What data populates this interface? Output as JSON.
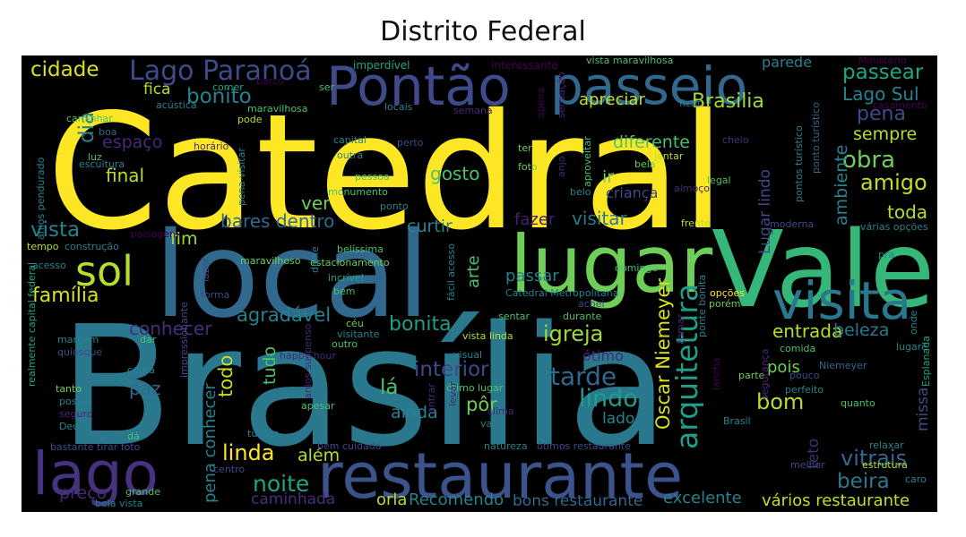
{
  "title": "Distrito Federal",
  "words": [
    {
      "text": "Catedral",
      "color": "#fde725"
    },
    {
      "text": "Brasília",
      "color": "#2a788e"
    },
    {
      "text": "local",
      "color": "#31688e"
    },
    {
      "text": "Vale",
      "color": "#35b779"
    },
    {
      "text": "lugar",
      "color": "#6ece58"
    },
    {
      "text": "restaurante",
      "color": "#3b528b"
    },
    {
      "text": "Pontão",
      "color": "#3e4a89"
    },
    {
      "text": "passeio",
      "color": "#31688e"
    },
    {
      "text": "lago",
      "color": "#46327e"
    },
    {
      "text": "visita",
      "color": "#2a788e"
    },
    {
      "text": "sol",
      "color": "#b5de2b"
    },
    {
      "text": "Lago Paranoá",
      "color": "#3e4a89"
    },
    {
      "text": "arquitetura",
      "color": "#1f9e89"
    },
    {
      "text": "cidade",
      "color": "#d8e219"
    },
    {
      "text": "Brasilia",
      "color": "#a0da39"
    },
    {
      "text": "bonito",
      "color": "#26828e"
    },
    {
      "text": "passear",
      "color": "#20a486"
    },
    {
      "text": "Lago Sul",
      "color": "#26828e"
    },
    {
      "text": "pena",
      "color": "#3e4a89"
    },
    {
      "text": "sempre",
      "color": "#b5de2b"
    },
    {
      "text": "obra",
      "color": "#6ece58"
    },
    {
      "text": "amigo",
      "color": "#c2df23"
    },
    {
      "text": "vista",
      "color": "#26828e"
    },
    {
      "text": "família",
      "color": "#d8e219"
    },
    {
      "text": "conhecer",
      "color": "#472d7b"
    },
    {
      "text": "agradável",
      "color": "#26828e"
    },
    {
      "text": "bonita",
      "color": "#1f9e89"
    },
    {
      "text": "igreja",
      "color": "#a0da39"
    },
    {
      "text": "entrada",
      "color": "#b5de2b"
    },
    {
      "text": "beleza",
      "color": "#2a788e"
    },
    {
      "text": "Oscar Niemeyer",
      "color": "#d8e219"
    },
    {
      "text": "lindo",
      "color": "#1f9e89"
    },
    {
      "text": "tarde",
      "color": "#31688e"
    },
    {
      "text": "interior",
      "color": "#3e4a89"
    },
    {
      "text": "lá",
      "color": "#4ac16d"
    },
    {
      "text": "pôr",
      "color": "#6ece58"
    },
    {
      "text": "ainda",
      "color": "#26828e"
    },
    {
      "text": "noite",
      "color": "#20a486"
    },
    {
      "text": "linda",
      "color": "#fde725"
    },
    {
      "text": "além",
      "color": "#b5de2b"
    },
    {
      "text": "bom",
      "color": "#b5de2b"
    },
    {
      "text": "missa",
      "color": "#3e4a89"
    },
    {
      "text": "vitrais",
      "color": "#31688e"
    },
    {
      "text": "beira",
      "color": "#2a788e"
    },
    {
      "text": "excelente",
      "color": "#26828e"
    },
    {
      "text": "vários restaurante",
      "color": "#c2df23"
    },
    {
      "text": "orla",
      "color": "#b5de2b"
    },
    {
      "text": "Recomendo",
      "color": "#26828e"
    },
    {
      "text": "bons restaurante",
      "color": "#31688e"
    },
    {
      "text": "caminhada",
      "color": "#472d7b"
    },
    {
      "text": "preço",
      "color": "#482878"
    },
    {
      "text": "bares dentro",
      "color": "#31688e"
    },
    {
      "text": "fazer",
      "color": "#481f70"
    },
    {
      "text": "visitar",
      "color": "#2a788e"
    },
    {
      "text": "curtir",
      "color": "#26828e"
    },
    {
      "text": "fim",
      "color": "#a0da39"
    },
    {
      "text": "ver",
      "color": "#6ece58"
    },
    {
      "text": "gosto",
      "color": "#4ac16d"
    },
    {
      "text": "final",
      "color": "#b5de2b"
    },
    {
      "text": "fica",
      "color": "#b5de2b"
    },
    {
      "text": "dia",
      "color": "#26828e"
    },
    {
      "text": "espaço",
      "color": "#482878"
    },
    {
      "text": "diferente",
      "color": "#4ac16d"
    },
    {
      "text": "apreciar",
      "color": "#c2df23"
    },
    {
      "text": "ir",
      "color": "#6ece58"
    },
    {
      "text": "criança",
      "color": "#3e4a89"
    },
    {
      "text": "ambiente",
      "color": "#26828e"
    },
    {
      "text": "Lugar lindo",
      "color": "#3e4a89"
    },
    {
      "text": "toda",
      "color": "#b5de2b"
    },
    {
      "text": "arte",
      "color": "#4ac16d"
    },
    {
      "text": "passar",
      "color": "#26828e"
    },
    {
      "text": "todo",
      "color": "#c2df23"
    },
    {
      "text": "tudo",
      "color": "#4ac16d"
    },
    {
      "text": "paz",
      "color": "#31688e"
    },
    {
      "text": "pena conhecer",
      "color": "#26828e"
    },
    {
      "text": "parede",
      "color": "#26828e"
    },
    {
      "text": "pois",
      "color": "#6ece58"
    },
    {
      "text": "lado",
      "color": "#26828e"
    },
    {
      "text": "teto",
      "color": "#472d7b"
    },
    {
      "text": "ótimo",
      "color": "#482878"
    },
    {
      "text": "imperdível",
      "color": "#20a486"
    },
    {
      "text": "interessante",
      "color": "#440154"
    },
    {
      "text": "vista maravilhosa",
      "color": "#4ac16d"
    },
    {
      "text": "Ministério",
      "color": "#440154"
    },
    {
      "text": "casamento",
      "color": "#440154"
    },
    {
      "text": "comer",
      "color": "#20a486"
    },
    {
      "text": "barco",
      "color": "#440154"
    },
    {
      "text": "ser",
      "color": "#4ac16d"
    },
    {
      "text": "acústica",
      "color": "#26828e"
    },
    {
      "text": "maravilhosa",
      "color": "#4ac16d"
    },
    {
      "text": "locais",
      "color": "#26828e"
    },
    {
      "text": "semana",
      "color": "#482878"
    },
    {
      "text": "ficar",
      "color": "#2a788e"
    },
    {
      "text": "caminhar",
      "color": "#4ac16d"
    },
    {
      "text": "pode",
      "color": "#b5de2b"
    },
    {
      "text": "boa",
      "color": "#31688e"
    },
    {
      "text": "horário",
      "color": "#482878"
    },
    {
      "text": "luz",
      "color": "#4ac16d"
    },
    {
      "text": "escultura",
      "color": "#26828e"
    },
    {
      "text": "anjos pendurado",
      "color": "#26828e"
    },
    {
      "text": "capital",
      "color": "#26828e"
    },
    {
      "text": "perto",
      "color": "#3e4a89"
    },
    {
      "text": "outra",
      "color": "#26828e"
    },
    {
      "text": "pessoa",
      "color": "#4ac16d"
    },
    {
      "text": "monumento",
      "color": "#4ac16d"
    },
    {
      "text": "ponto",
      "color": "#26828e"
    },
    {
      "text": "pena visitar",
      "color": "#26828e"
    },
    {
      "text": "ter",
      "color": "#6ece58"
    },
    {
      "text": "foto",
      "color": "#6ece58"
    },
    {
      "text": "anjo",
      "color": "#482878"
    },
    {
      "text": "aproveitar",
      "color": "#4ac16d"
    },
    {
      "text": "jantar",
      "color": "#b5de2b"
    },
    {
      "text": "bela",
      "color": "#6ece58"
    },
    {
      "text": "belo",
      "color": "#26828e"
    },
    {
      "text": "almoço",
      "color": "#482878"
    },
    {
      "text": "legal",
      "color": "#4ac16d"
    },
    {
      "text": "pontos turístico",
      "color": "#26828e"
    },
    {
      "text": "ponto turístico",
      "color": "#31688e"
    },
    {
      "text": "cheio",
      "color": "#472d7b"
    },
    {
      "text": "sensação",
      "color": "#482878"
    },
    {
      "text": "apena",
      "color": "#440154"
    },
    {
      "text": "moderna",
      "color": "#3e4a89"
    },
    {
      "text": "várias opções",
      "color": "#26828e"
    },
    {
      "text": "frente",
      "color": "#b5de2b"
    },
    {
      "text": "tempo",
      "color": "#b5de2b"
    },
    {
      "text": "construção",
      "color": "#26828e"
    },
    {
      "text": "paisagem",
      "color": "#440154"
    },
    {
      "text": "maravilhoso",
      "color": "#6ece58"
    },
    {
      "text": "belíssima",
      "color": "#4ac16d"
    },
    {
      "text": "acesso",
      "color": "#26828e"
    },
    {
      "text": "lazer",
      "color": "#3e4a89"
    },
    {
      "text": "estacionamento",
      "color": "#6ece58"
    },
    {
      "text": "deixe",
      "color": "#26828e"
    },
    {
      "text": "incrível",
      "color": "#20a486"
    },
    {
      "text": "bem",
      "color": "#4ac16d"
    },
    {
      "text": "fácil acesso",
      "color": "#26828e"
    },
    {
      "text": "forma",
      "color": "#3e4a89"
    },
    {
      "text": "Catedral Metropolitana",
      "color": "#26828e"
    },
    {
      "text": "domingo",
      "color": "#4ac16d"
    },
    {
      "text": "pra",
      "color": "#26828e"
    },
    {
      "text": "opções",
      "color": "#fde725"
    },
    {
      "text": "porém",
      "color": "#6ece58"
    },
    {
      "text": "realmente capital federal",
      "color": "#20a486"
    },
    {
      "text": "achei",
      "color": "#3e4a89"
    },
    {
      "text": "céu",
      "color": "#6ece58"
    },
    {
      "text": "sentar",
      "color": "#4ac16d"
    },
    {
      "text": "durante",
      "color": "#4ac16d"
    },
    {
      "text": "margem",
      "color": "#26828e"
    },
    {
      "text": "quiosque",
      "color": "#3e4a89"
    },
    {
      "text": "dar",
      "color": "#4ac16d"
    },
    {
      "text": "visitante",
      "color": "#26828e"
    },
    {
      "text": "outro",
      "color": "#4ac16d"
    },
    {
      "text": "vista linda",
      "color": "#b5de2b"
    },
    {
      "text": "tomar",
      "color": "#482878"
    },
    {
      "text": "comida",
      "color": "#4ac16d"
    },
    {
      "text": "lugare",
      "color": "#26828e"
    },
    {
      "text": "conta",
      "color": "#26828e"
    },
    {
      "text": "happy hour",
      "color": "#482878"
    },
    {
      "text": "visual",
      "color": "#26828e"
    },
    {
      "text": "ponte bonita",
      "color": "#26828e"
    },
    {
      "text": "Niemeyer",
      "color": "#31688e"
    },
    {
      "text": "onde",
      "color": "#26828e"
    },
    {
      "text": "tanto",
      "color": "#6ece58"
    },
    {
      "text": "possui",
      "color": "#26828e"
    },
    {
      "text": "seguro",
      "color": "#482878"
    },
    {
      "text": "Deu",
      "color": "#26828e"
    },
    {
      "text": "impressionante",
      "color": "#3e4a89"
    },
    {
      "text": "anjos suspenso",
      "color": "#482878"
    },
    {
      "text": "ótimo lugar",
      "color": "#4ac16d"
    },
    {
      "text": "clima",
      "color": "#482878"
    },
    {
      "text": "parte",
      "color": "#6ece58"
    },
    {
      "text": "pouco",
      "color": "#3e4a89"
    },
    {
      "text": "perfeito",
      "color": "#26828e"
    },
    {
      "text": "lancha",
      "color": "#440154"
    },
    {
      "text": "Esplanada",
      "color": "#20a486"
    },
    {
      "text": "apesar",
      "color": "#4ac16d"
    },
    {
      "text": "turista",
      "color": "#26828e"
    },
    {
      "text": "entrar",
      "color": "#482878"
    },
    {
      "text": "levar",
      "color": "#482878"
    },
    {
      "text": "vai",
      "color": "#26828e"
    },
    {
      "text": "Brasil",
      "color": "#26828e"
    },
    {
      "text": "segurança",
      "color": "#482878"
    },
    {
      "text": "quanto",
      "color": "#4ac16d"
    },
    {
      "text": "dá",
      "color": "#4ac16d"
    },
    {
      "text": "bastante tirar foto",
      "color": "#3e4a89"
    },
    {
      "text": "bem cuidado",
      "color": "#3e4a89"
    },
    {
      "text": "natureza",
      "color": "#26828e"
    },
    {
      "text": "ótimos restaurante",
      "color": "#3e4a89"
    },
    {
      "text": "relaxar",
      "color": "#26828e"
    },
    {
      "text": "melhor",
      "color": "#3e4a89"
    },
    {
      "text": "estrutura",
      "color": "#b5de2b"
    },
    {
      "text": "caro",
      "color": "#26828e"
    },
    {
      "text": "centro",
      "color": "#3e4a89"
    },
    {
      "text": "grande",
      "color": "#4ac16d"
    },
    {
      "text": "bela vista",
      "color": "#26828e"
    }
  ]
}
